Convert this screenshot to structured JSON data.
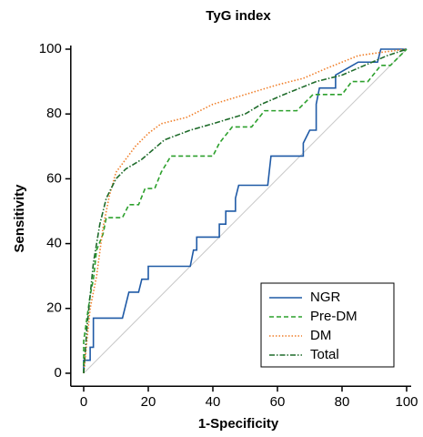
{
  "chart_data": {
    "type": "line",
    "title": "TyG index",
    "x_label": "1-Specificity",
    "y_label": "Sensitivity",
    "xlim": [
      -4,
      100
    ],
    "ylim": [
      -4,
      100
    ],
    "xticks": [
      0,
      20,
      40,
      60,
      80,
      100
    ],
    "yticks": [
      0,
      20,
      40,
      60,
      80,
      100
    ],
    "reference_line": true,
    "legend": "lower right",
    "series": [
      {
        "name": "NGR",
        "color": "#1f5aa6",
        "style": "solid",
        "x": [
          0,
          0,
          2,
          2,
          3,
          3,
          12,
          14,
          17,
          18,
          20,
          20,
          33,
          34,
          35,
          35,
          42,
          42,
          44,
          44,
          47,
          47,
          48,
          57,
          58,
          68,
          68,
          70,
          72,
          72,
          73,
          78,
          78,
          85,
          91,
          92,
          100
        ],
        "values": [
          0,
          4,
          4,
          8,
          8,
          17,
          17,
          25,
          25,
          29,
          29,
          33,
          33,
          38,
          38,
          42,
          42,
          46,
          46,
          50,
          50,
          54,
          58,
          58,
          67,
          67,
          71,
          75,
          75,
          83,
          88,
          88,
          92,
          96,
          96,
          100,
          100
        ]
      },
      {
        "name": "Pre-DM",
        "color": "#2ca02c",
        "style": "dashed",
        "x": [
          0,
          0,
          2,
          3,
          4,
          6,
          7,
          12,
          14,
          17,
          19,
          22,
          24,
          27,
          40,
          42,
          46,
          52,
          56,
          66,
          71,
          80,
          83,
          88,
          92,
          95,
          100
        ],
        "values": [
          0,
          10,
          24,
          29,
          38,
          43,
          48,
          48,
          52,
          52,
          57,
          57,
          62,
          67,
          67,
          71,
          76,
          76,
          81,
          81,
          86,
          86,
          90,
          90,
          95,
          95,
          100
        ]
      },
      {
        "name": "DM",
        "color": "#f07f2a",
        "style": "dotted",
        "x": [
          0,
          1,
          2,
          4,
          6,
          8,
          10,
          13,
          16,
          20,
          24,
          32,
          40,
          50,
          60,
          68,
          75,
          80,
          85,
          92,
          100
        ],
        "values": [
          0,
          10,
          20,
          30,
          45,
          55,
          62,
          66,
          70,
          74,
          77,
          79,
          83,
          86,
          89,
          91,
          94,
          96,
          98,
          99,
          100
        ]
      },
      {
        "name": "Total",
        "color": "#1e6b2a",
        "style": "dashdot",
        "x": [
          0,
          1,
          2,
          3,
          5,
          7,
          10,
          13,
          18,
          25,
          33,
          40,
          50,
          55,
          62,
          72,
          80,
          87,
          94,
          100
        ],
        "values": [
          0,
          14,
          24,
          34,
          46,
          54,
          60,
          63,
          66,
          72,
          75,
          77,
          80,
          83,
          86,
          90,
          92,
          95,
          98,
          100
        ]
      }
    ]
  }
}
